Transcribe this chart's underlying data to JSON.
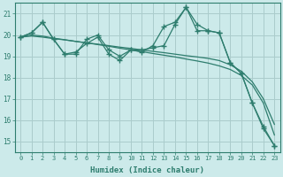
{
  "xlabel": "Humidex (Indice chaleur)",
  "bg_color": "#cceaea",
  "grid_color": "#aacccc",
  "line_color": "#2e7d6e",
  "x_values": [
    0,
    1,
    2,
    3,
    4,
    5,
    6,
    7,
    8,
    9,
    10,
    11,
    12,
    13,
    14,
    15,
    16,
    17,
    18,
    19,
    20,
    21,
    22,
    23
  ],
  "series_jagged1": [
    19.9,
    20.1,
    20.6,
    19.8,
    19.1,
    19.1,
    19.8,
    20.0,
    19.3,
    19.0,
    19.3,
    19.3,
    19.4,
    19.5,
    20.5,
    21.3,
    20.5,
    20.2,
    20.1,
    18.7,
    18.2,
    16.8,
    15.6,
    14.8
  ],
  "series_jagged2": [
    19.9,
    20.1,
    20.6,
    19.8,
    19.1,
    19.2,
    19.6,
    19.9,
    19.1,
    18.8,
    19.3,
    19.2,
    19.5,
    20.4,
    20.6,
    21.3,
    20.2,
    20.2,
    20.1,
    18.7,
    18.2,
    16.8,
    15.7,
    14.8
  ],
  "series_smooth1": [
    19.9,
    19.95,
    19.9,
    19.83,
    19.77,
    19.7,
    19.63,
    19.57,
    19.5,
    19.43,
    19.37,
    19.3,
    19.23,
    19.17,
    19.1,
    19.03,
    18.97,
    18.9,
    18.8,
    18.6,
    18.3,
    17.8,
    17.0,
    15.8
  ],
  "series_smooth2": [
    19.9,
    20.0,
    19.95,
    19.85,
    19.78,
    19.7,
    19.63,
    19.55,
    19.47,
    19.38,
    19.3,
    19.22,
    19.13,
    19.05,
    18.97,
    18.87,
    18.78,
    18.68,
    18.55,
    18.38,
    18.1,
    17.65,
    16.8,
    15.3
  ],
  "ylim": [
    14.5,
    21.5
  ],
  "yticks": [
    15,
    16,
    17,
    18,
    19,
    20,
    21
  ]
}
